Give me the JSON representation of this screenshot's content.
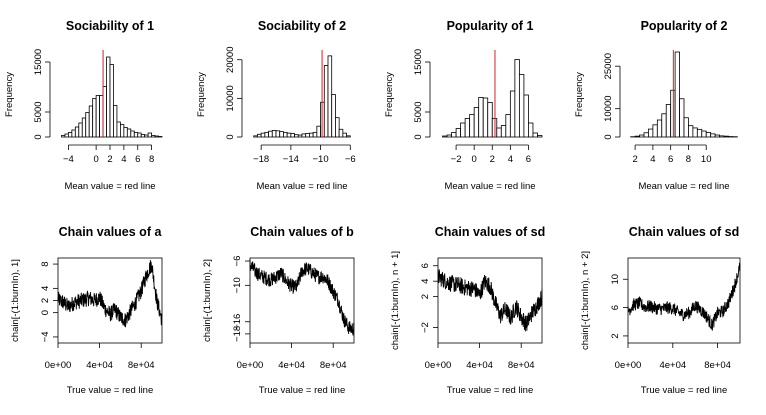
{
  "chart_data": [
    {
      "type": "bar",
      "title": "Sociability of 1",
      "xlabel": "Mean value = red line",
      "ylabel": "Frequency",
      "bin_start": -5,
      "bin_width": 0.5,
      "values": [
        300,
        600,
        900,
        1400,
        2000,
        2800,
        3800,
        4900,
        6200,
        7700,
        8300,
        8300,
        10100,
        16000,
        14500,
        6300,
        3000,
        2500,
        1900,
        1600,
        1200,
        900,
        800,
        500,
        400,
        800,
        300,
        200,
        100
      ],
      "xlim": [
        -5.5,
        9.5
      ],
      "ylim": [
        0,
        17000
      ],
      "xticks": [
        -4,
        0,
        2,
        4,
        6,
        8
      ],
      "yticks": [
        0,
        5000,
        15000
      ],
      "mean_line": 1.0
    },
    {
      "type": "bar",
      "title": "Sociability of 2",
      "xlabel": "Mean value = red line",
      "ylabel": "Frequency",
      "bin_start": -19,
      "bin_width": 0.5,
      "values": [
        300,
        700,
        1000,
        1200,
        1500,
        1700,
        1600,
        1400,
        1200,
        1000,
        900,
        600,
        500,
        800,
        900,
        1000,
        1200,
        2800,
        9000,
        18500,
        21000,
        11000,
        5000,
        2000,
        1000,
        300
      ],
      "xlim": [
        -19.5,
        -5.5
      ],
      "ylim": [
        0,
        22000
      ],
      "xticks": [
        -18,
        -14,
        -10,
        -6
      ],
      "yticks": [
        0,
        10000,
        20000
      ],
      "mean_line": -9.8
    },
    {
      "type": "bar",
      "title": "Popularity of 1",
      "xlabel": "Mean value = red line",
      "ylabel": "Frequency",
      "bin_start": -3.5,
      "bin_width": 0.5,
      "values": [
        200,
        400,
        900,
        1700,
        2800,
        3700,
        4500,
        5900,
        7900,
        7800,
        6900,
        3700,
        1800,
        2300,
        4500,
        9200,
        15500,
        12500,
        8400,
        2800,
        800,
        300
      ],
      "xlim": [
        -4,
        7.5
      ],
      "ylim": [
        0,
        17000
      ],
      "xticks": [
        -2,
        0,
        2,
        4,
        6
      ],
      "yticks": [
        0,
        5000,
        15000
      ],
      "mean_line": 2.3
    },
    {
      "type": "bar",
      "title": "Popularity of 2",
      "xlabel": "Mean value = red line",
      "ylabel": "Frequency",
      "bin_start": 1.5,
      "bin_width": 0.5,
      "values": [
        100,
        300,
        700,
        1500,
        2800,
        4300,
        6000,
        8200,
        11500,
        16500,
        30000,
        13500,
        6800,
        4000,
        3200,
        2700,
        2100,
        1600,
        1100,
        700,
        400,
        300,
        150,
        100
      ],
      "xlim": [
        1.2,
        13.8
      ],
      "ylim": [
        0,
        30000
      ],
      "xticks": [
        2,
        4,
        6,
        8,
        10
      ],
      "yticks": [
        0,
        10000,
        25000
      ],
      "mean_line": 6.3
    },
    {
      "type": "line",
      "title": "Chain values of a",
      "xlabel": "True value = red line",
      "ylabel": "chain[-(1:burnIn), 1]",
      "xlim": [
        0,
        100000
      ],
      "ylim": [
        -5,
        9
      ],
      "xticks": [
        0,
        40000,
        80000
      ],
      "xtick_labels": [
        "0e+00",
        "4e+04",
        "8e+04"
      ],
      "yticks": [
        -4,
        0,
        2,
        4,
        8
      ],
      "x": [
        0,
        5000,
        10000,
        15000,
        20000,
        25000,
        30000,
        35000,
        40000,
        45000,
        50000,
        55000,
        60000,
        65000,
        70000,
        75000,
        80000,
        85000,
        90000,
        95000,
        100000
      ],
      "y": [
        2.2,
        1.7,
        1.0,
        1.6,
        1.9,
        2.1,
        2.4,
        2.0,
        2.5,
        0.7,
        -0.3,
        0.5,
        -0.8,
        -1.2,
        0.3,
        1.8,
        3.6,
        6.2,
        8.0,
        2.0,
        -1.3
      ],
      "noise": 1.3
    },
    {
      "type": "line",
      "title": "Chain values of b",
      "xlabel": "True value = red line",
      "ylabel": "chain[-(1:burnIn), 2]",
      "xlim": [
        0,
        100000
      ],
      "ylim": [
        -19.5,
        -5.5
      ],
      "xticks": [
        0,
        40000,
        80000
      ],
      "xtick_labels": [
        "0e+00",
        "4e+04",
        "8e+04"
      ],
      "yticks": [
        -18,
        -16,
        -10,
        -6
      ],
      "x": [
        0,
        5000,
        10000,
        15000,
        20000,
        25000,
        30000,
        35000,
        40000,
        45000,
        50000,
        55000,
        60000,
        65000,
        70000,
        75000,
        80000,
        85000,
        90000,
        95000,
        100000
      ],
      "y": [
        -6.6,
        -7.7,
        -8.4,
        -8.8,
        -9.1,
        -8.6,
        -8.0,
        -9.3,
        -10.2,
        -10.3,
        -7.6,
        -7.2,
        -7.9,
        -8.6,
        -8.5,
        -9.3,
        -11.0,
        -12.5,
        -15.5,
        -17.0,
        -17.2
      ],
      "noise": 1.2
    },
    {
      "type": "line",
      "title": "Chain values of sd",
      "xlabel": "True value = red line",
      "ylabel": "chain[-(1:burnIn), n + 1]",
      "xlim": [
        0,
        100000
      ],
      "ylim": [
        -4,
        7
      ],
      "xticks": [
        0,
        40000,
        80000
      ],
      "xtick_labels": [
        "0e+00",
        "4e+04",
        "8e+04"
      ],
      "yticks": [
        -2,
        2,
        4,
        6
      ],
      "x": [
        0,
        5000,
        10000,
        15000,
        20000,
        25000,
        30000,
        35000,
        40000,
        45000,
        50000,
        55000,
        60000,
        65000,
        70000,
        75000,
        80000,
        85000,
        90000,
        95000,
        100000
      ],
      "y": [
        4.6,
        4.2,
        3.8,
        3.6,
        3.5,
        3.2,
        3.1,
        3.0,
        2.2,
        4.0,
        3.4,
        1.2,
        -0.5,
        0.4,
        -0.8,
        0.8,
        -0.6,
        -1.6,
        -0.2,
        0.8,
        2.0
      ],
      "noise": 1.1
    },
    {
      "type": "line",
      "title": "Chain values of sd",
      "xlabel": "True value = red line",
      "ylabel": "chain[-(1:burnIn), n + 2]",
      "xlim": [
        0,
        100000
      ],
      "ylim": [
        1,
        13
      ],
      "xticks": [
        0,
        40000,
        80000
      ],
      "xtick_labels": [
        "0e+00",
        "4e+04",
        "8e+04"
      ],
      "yticks": [
        2,
        6,
        10
      ],
      "x": [
        0,
        5000,
        10000,
        15000,
        20000,
        25000,
        30000,
        35000,
        40000,
        45000,
        50000,
        55000,
        60000,
        65000,
        70000,
        75000,
        80000,
        85000,
        90000,
        95000,
        100000
      ],
      "y": [
        5.5,
        6.4,
        6.6,
        6.1,
        6.2,
        5.9,
        5.8,
        6.0,
        5.9,
        5.3,
        5.0,
        5.3,
        6.3,
        5.7,
        4.8,
        3.5,
        5.2,
        5.5,
        6.8,
        9.0,
        11.8
      ],
      "noise": 0.9
    }
  ]
}
